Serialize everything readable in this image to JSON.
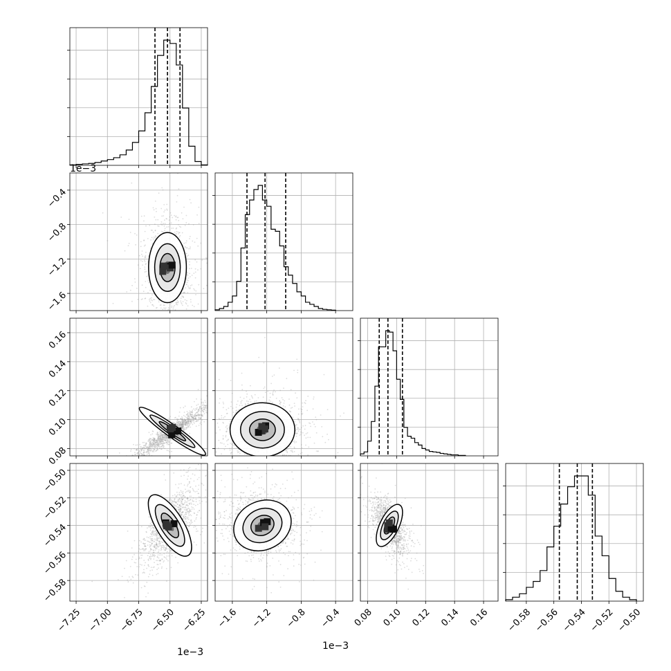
{
  "chart_data": {
    "type": "corner",
    "grid": true,
    "colors": {
      "ink": "#000000",
      "scatter": "#9a9a9a",
      "grid": "#b0b0b0"
    },
    "parameters": [
      {
        "index": 0,
        "range": [
          -7.3,
          -6.2
        ],
        "ticks": [
          -7.25,
          -7.0,
          -6.75,
          -6.5,
          -6.25
        ],
        "tick_labels": [
          "−7.25",
          "−7.00",
          "−6.75",
          "−6.50",
          "−6.25"
        ],
        "offset_label": "1e−3",
        "axis_offset_label": "1e−3",
        "center": -6.52,
        "quantiles": [
          -6.62,
          -6.52,
          -6.42
        ]
      },
      {
        "index": 1,
        "range": [
          -1.8,
          -0.2
        ],
        "ticks": [
          -1.6,
          -1.2,
          -0.8,
          -0.4
        ],
        "tick_labels": [
          "−1.6",
          "−1.2",
          "−0.8",
          "−0.4"
        ],
        "offset_label": "1e−3",
        "center": -1.22,
        "quantiles": [
          -1.43,
          -1.22,
          -0.98
        ]
      },
      {
        "index": 2,
        "range": [
          0.075,
          0.17
        ],
        "ticks": [
          0.08,
          0.1,
          0.12,
          0.14,
          0.16
        ],
        "tick_labels": [
          "0.08",
          "0.10",
          "0.12",
          "0.14",
          "0.16"
        ],
        "center": 0.094,
        "quantiles": [
          0.088,
          0.094,
          0.104
        ]
      },
      {
        "index": 3,
        "range": [
          -0.595,
          -0.495
        ],
        "ticks": [
          -0.58,
          -0.56,
          -0.54,
          -0.52,
          -0.5
        ],
        "tick_labels": [
          "−0.58",
          "−0.56",
          "−0.54",
          "−0.52",
          "−0.50"
        ],
        "center": -0.543,
        "quantiles": [
          -0.556,
          -0.543,
          -0.532
        ]
      }
    ],
    "histograms": [
      {
        "param": 0,
        "bins": [
          [
            -7.3,
            -7.25,
            1
          ],
          [
            -7.25,
            -7.2,
            2
          ],
          [
            -7.2,
            -7.15,
            3
          ],
          [
            -7.15,
            -7.1,
            4
          ],
          [
            -7.1,
            -7.05,
            6
          ],
          [
            -7.05,
            -7.0,
            9
          ],
          [
            -7.0,
            -6.95,
            12
          ],
          [
            -6.95,
            -6.9,
            16
          ],
          [
            -6.9,
            -6.85,
            22
          ],
          [
            -6.85,
            -6.8,
            32
          ],
          [
            -6.8,
            -6.75,
            48
          ],
          [
            -6.75,
            -6.7,
            72
          ],
          [
            -6.7,
            -6.65,
            110
          ],
          [
            -6.65,
            -6.6,
            165
          ],
          [
            -6.6,
            -6.55,
            230
          ],
          [
            -6.55,
            -6.5,
            262
          ],
          [
            -6.5,
            -6.45,
            255
          ],
          [
            -6.45,
            -6.4,
            210
          ],
          [
            -6.4,
            -6.35,
            120
          ],
          [
            -6.35,
            -6.3,
            40
          ],
          [
            -6.3,
            -6.25,
            8
          ],
          [
            -6.25,
            -6.2,
            1
          ]
        ]
      },
      {
        "param": 1,
        "bins": [
          [
            -1.8,
            -1.75,
            2
          ],
          [
            -1.75,
            -1.7,
            5
          ],
          [
            -1.7,
            -1.65,
            10
          ],
          [
            -1.65,
            -1.6,
            20
          ],
          [
            -1.6,
            -1.55,
            35
          ],
          [
            -1.55,
            -1.5,
            70
          ],
          [
            -1.5,
            -1.45,
            150
          ],
          [
            -1.45,
            -1.4,
            230
          ],
          [
            -1.4,
            -1.35,
            265
          ],
          [
            -1.35,
            -1.3,
            290
          ],
          [
            -1.3,
            -1.25,
            300
          ],
          [
            -1.25,
            -1.2,
            265
          ],
          [
            -1.2,
            -1.15,
            250
          ],
          [
            -1.15,
            -1.1,
            195
          ],
          [
            -1.1,
            -1.05,
            190
          ],
          [
            -1.05,
            -1.0,
            155
          ],
          [
            -1.0,
            -0.95,
            105
          ],
          [
            -0.95,
            -0.9,
            85
          ],
          [
            -0.9,
            -0.85,
            65
          ],
          [
            -0.85,
            -0.8,
            45
          ],
          [
            -0.8,
            -0.75,
            35
          ],
          [
            -0.75,
            -0.7,
            20
          ],
          [
            -0.7,
            -0.65,
            15
          ],
          [
            -0.65,
            -0.6,
            10
          ],
          [
            -0.6,
            -0.55,
            5
          ],
          [
            -0.55,
            -0.5,
            3
          ],
          [
            -0.5,
            -0.45,
            2
          ],
          [
            -0.45,
            -0.4,
            1
          ]
        ]
      },
      {
        "param": 2,
        "bins": [
          [
            0.075,
            0.0775,
            4
          ],
          [
            0.0775,
            0.08,
            8
          ],
          [
            0.08,
            0.0825,
            30
          ],
          [
            0.0825,
            0.085,
            70
          ],
          [
            0.085,
            0.0875,
            142
          ],
          [
            0.0875,
            0.09,
            222
          ],
          [
            0.09,
            0.0925,
            222
          ],
          [
            0.0925,
            0.095,
            255
          ],
          [
            0.095,
            0.0975,
            252
          ],
          [
            0.0975,
            0.1,
            214
          ],
          [
            0.1,
            0.1025,
            156
          ],
          [
            0.1025,
            0.105,
            115
          ],
          [
            0.105,
            0.1075,
            58
          ],
          [
            0.1075,
            0.11,
            40
          ],
          [
            0.11,
            0.1125,
            36
          ],
          [
            0.1125,
            0.115,
            27
          ],
          [
            0.115,
            0.1175,
            22
          ],
          [
            0.1175,
            0.12,
            15
          ],
          [
            0.12,
            0.1225,
            12
          ],
          [
            0.1225,
            0.125,
            9
          ],
          [
            0.125,
            0.1275,
            8
          ],
          [
            0.1275,
            0.13,
            7
          ],
          [
            0.13,
            0.1325,
            5
          ],
          [
            0.1325,
            0.135,
            4
          ],
          [
            0.135,
            0.1375,
            3
          ],
          [
            0.1375,
            0.14,
            2
          ],
          [
            0.14,
            0.1425,
            2
          ],
          [
            0.1425,
            0.145,
            1
          ],
          [
            0.145,
            0.1475,
            1
          ]
        ]
      },
      {
        "param": 3,
        "bins": [
          [
            -0.595,
            -0.59,
            3
          ],
          [
            -0.59,
            -0.585,
            8
          ],
          [
            -0.585,
            -0.58,
            15
          ],
          [
            -0.58,
            -0.575,
            28
          ],
          [
            -0.575,
            -0.57,
            40
          ],
          [
            -0.57,
            -0.565,
            62
          ],
          [
            -0.565,
            -0.56,
            110
          ],
          [
            -0.56,
            -0.555,
            152
          ],
          [
            -0.555,
            -0.55,
            197
          ],
          [
            -0.55,
            -0.545,
            232
          ],
          [
            -0.545,
            -0.54,
            254
          ],
          [
            -0.54,
            -0.535,
            254
          ],
          [
            -0.535,
            -0.53,
            215
          ],
          [
            -0.53,
            -0.525,
            132
          ],
          [
            -0.525,
            -0.52,
            92
          ],
          [
            -0.52,
            -0.515,
            46
          ],
          [
            -0.515,
            -0.51,
            20
          ],
          [
            -0.51,
            -0.505,
            8
          ],
          [
            -0.505,
            -0.5,
            3
          ]
        ]
      }
    ],
    "pairs": [
      {
        "x_param": 0,
        "y_param": 1,
        "peak": [
          -6.52,
          -1.3
        ]
      },
      {
        "x_param": 0,
        "y_param": 2,
        "peak": [
          -6.48,
          0.092
        ]
      },
      {
        "x_param": 1,
        "y_param": 2,
        "peak": [
          -1.25,
          0.093
        ]
      },
      {
        "x_param": 0,
        "y_param": 3,
        "peak": [
          -6.5,
          -0.54
        ]
      },
      {
        "x_param": 1,
        "y_param": 3,
        "peak": [
          -1.25,
          -0.54
        ]
      },
      {
        "x_param": 2,
        "y_param": 3,
        "peak": [
          0.095,
          -0.54
        ]
      }
    ]
  }
}
